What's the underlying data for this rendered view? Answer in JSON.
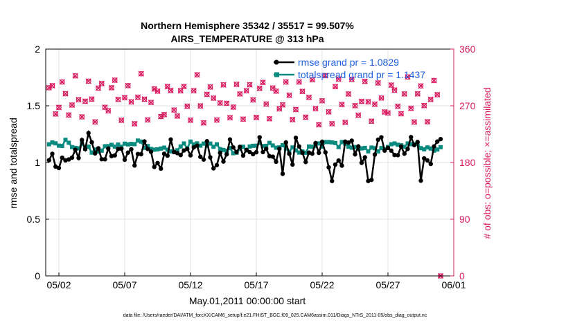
{
  "chart_data": {
    "type": "line",
    "title": "Northern Hemisphere 35342 / 35517 = 99.507%",
    "subtitle": "AIRS_TEMPERATURE @ 313 hPa",
    "xlabel": "May.01,2011 00:00:00 start",
    "ylabel_left": "rmse and totalspread",
    "ylabel_right": "# of obs: o=possible; ×=assimilated",
    "footnote": "data file: /Users/raeder/DAI/ATM_forcXX/CAM6_setup/f.e21.FHIST_BGC.f09_025.CAM6assim.011/Diags_NTrS_2011-05/obs_diag_output.nc",
    "x_tick_labels": [
      "05/02",
      "05/07",
      "05/12",
      "05/17",
      "05/22",
      "05/27",
      "06/01"
    ],
    "x_tick_days": [
      1,
      6,
      11,
      16,
      21,
      26,
      31
    ],
    "xlim_days": [
      0,
      31
    ],
    "ylim_left": [
      0,
      2
    ],
    "yticks_left": [
      "0",
      "0.5",
      "1",
      "1.5",
      "2"
    ],
    "ylim_right": [
      0,
      360
    ],
    "yticks_right": [
      "0",
      "90",
      "180",
      "270",
      "360"
    ],
    "grid": true,
    "legend_position": "top-right",
    "series": [
      {
        "name": "rmse",
        "legend": "rmse grand pr = 1.0829",
        "color": "#000000",
        "axis": "left"
      },
      {
        "name": "totalspread",
        "legend": "totalspread grand pr = 1.1437",
        "color": "#0b8a80",
        "axis": "left"
      },
      {
        "name": "obs_possible",
        "color": "#d81b60",
        "axis": "right"
      },
      {
        "name": "obs_assimilated",
        "color": "#d81b60",
        "axis": "right"
      }
    ],
    "colors": {
      "rmse": "#000000",
      "spread": "#0b8a80",
      "obs": "#d81b60",
      "legend_text": "#1f5fe0",
      "grid": "#e2e2e2"
    }
  }
}
